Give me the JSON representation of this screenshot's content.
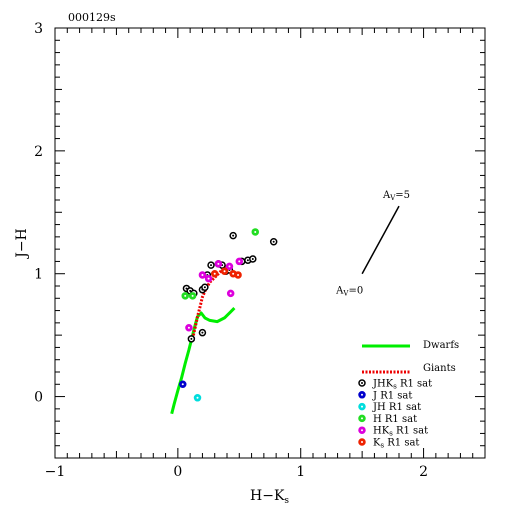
{
  "chart_data": {
    "type": "scatter",
    "title": "000129s",
    "xlabel": "H−K",
    "xlabel_sub": "s",
    "ylabel": "J−H",
    "xlim": [
      -1,
      2.5
    ],
    "ylim": [
      -0.5,
      3
    ],
    "xticks": [
      -1,
      0,
      1,
      2
    ],
    "yticks": [
      0,
      1,
      2,
      3
    ],
    "xtick_labels": [
      "−1",
      "0",
      "1",
      "2"
    ],
    "ytick_labels": [
      "0",
      "1",
      "2",
      "3"
    ],
    "reddening_vector": {
      "from": [
        1.5,
        1.0
      ],
      "to": [
        1.8,
        1.55
      ],
      "label_start_main": "A",
      "label_start_sub": "V",
      "label_start_tail": "=0",
      "label_end_main": "A",
      "label_end_sub": "V",
      "label_end_tail": "=5"
    },
    "dwarfs_track": {
      "name": "Dwarfs",
      "color": "#00ee00",
      "points": [
        [
          -0.05,
          -0.14
        ],
        [
          -0.03,
          -0.06
        ],
        [
          0.0,
          0.05
        ],
        [
          0.03,
          0.15
        ],
        [
          0.06,
          0.27
        ],
        [
          0.09,
          0.38
        ],
        [
          0.12,
          0.5
        ],
        [
          0.14,
          0.58
        ],
        [
          0.16,
          0.65
        ],
        [
          0.19,
          0.68
        ],
        [
          0.22,
          0.64
        ],
        [
          0.26,
          0.62
        ],
        [
          0.32,
          0.61
        ],
        [
          0.38,
          0.64
        ],
        [
          0.43,
          0.69
        ],
        [
          0.46,
          0.72
        ]
      ]
    },
    "giants_track": {
      "name": "Giants",
      "color": "#ee0000",
      "points": [
        [
          0.12,
          0.47
        ],
        [
          0.14,
          0.56
        ],
        [
          0.16,
          0.65
        ],
        [
          0.18,
          0.73
        ],
        [
          0.2,
          0.81
        ],
        [
          0.23,
          0.88
        ],
        [
          0.26,
          0.93
        ],
        [
          0.3,
          0.97
        ],
        [
          0.33,
          1.0
        ],
        [
          0.36,
          1.03
        ],
        [
          0.38,
          1.06
        ],
        [
          0.4,
          1.05
        ],
        [
          0.43,
          1.03
        ],
        [
          0.46,
          1.0
        ]
      ]
    },
    "series": [
      {
        "name": "JHK",
        "name_sub": "s",
        "name_tail": " R1 sat",
        "color": "#000000",
        "points": [
          [
            0.07,
            0.88
          ],
          [
            0.1,
            0.86
          ],
          [
            0.13,
            0.84
          ],
          [
            0.2,
            0.87
          ],
          [
            0.22,
            0.89
          ],
          [
            0.24,
            0.99
          ],
          [
            0.27,
            1.07
          ],
          [
            0.33,
            1.08
          ],
          [
            0.36,
            1.07
          ],
          [
            0.39,
            1.02
          ],
          [
            0.42,
            1.03
          ],
          [
            0.45,
            1.31
          ],
          [
            0.52,
            1.1
          ],
          [
            0.57,
            1.11
          ],
          [
            0.61,
            1.12
          ],
          [
            0.78,
            1.26
          ],
          [
            0.2,
            0.52
          ],
          [
            0.11,
            0.47
          ]
        ]
      },
      {
        "name": "J R1 sat",
        "color": "#0000cc",
        "points": [
          [
            0.04,
            0.1
          ]
        ]
      },
      {
        "name": "JH R1 sat",
        "color": "#00dddd",
        "points": [
          [
            0.16,
            -0.01
          ]
        ]
      },
      {
        "name": "H R1 sat",
        "color": "#22dd22",
        "points": [
          [
            0.06,
            0.82
          ],
          [
            0.12,
            0.82
          ],
          [
            0.63,
            1.34
          ]
        ]
      },
      {
        "name": "HK",
        "name_sub": "s",
        "name_tail": " R1 sat",
        "color": "#dd00dd",
        "points": [
          [
            0.09,
            0.56
          ],
          [
            0.2,
            0.99
          ],
          [
            0.25,
            0.96
          ],
          [
            0.33,
            1.08
          ],
          [
            0.42,
            1.06
          ],
          [
            0.43,
            0.84
          ],
          [
            0.5,
            1.1
          ]
        ]
      },
      {
        "name": "K",
        "name_sub": "s",
        "name_tail": " R1 sat",
        "color": "#ee2200",
        "points": [
          [
            0.3,
            1.0
          ],
          [
            0.38,
            1.02
          ],
          [
            0.45,
            1.0
          ],
          [
            0.49,
            0.99
          ]
        ]
      }
    ],
    "legend_position": "bottom-right",
    "grid": false
  }
}
